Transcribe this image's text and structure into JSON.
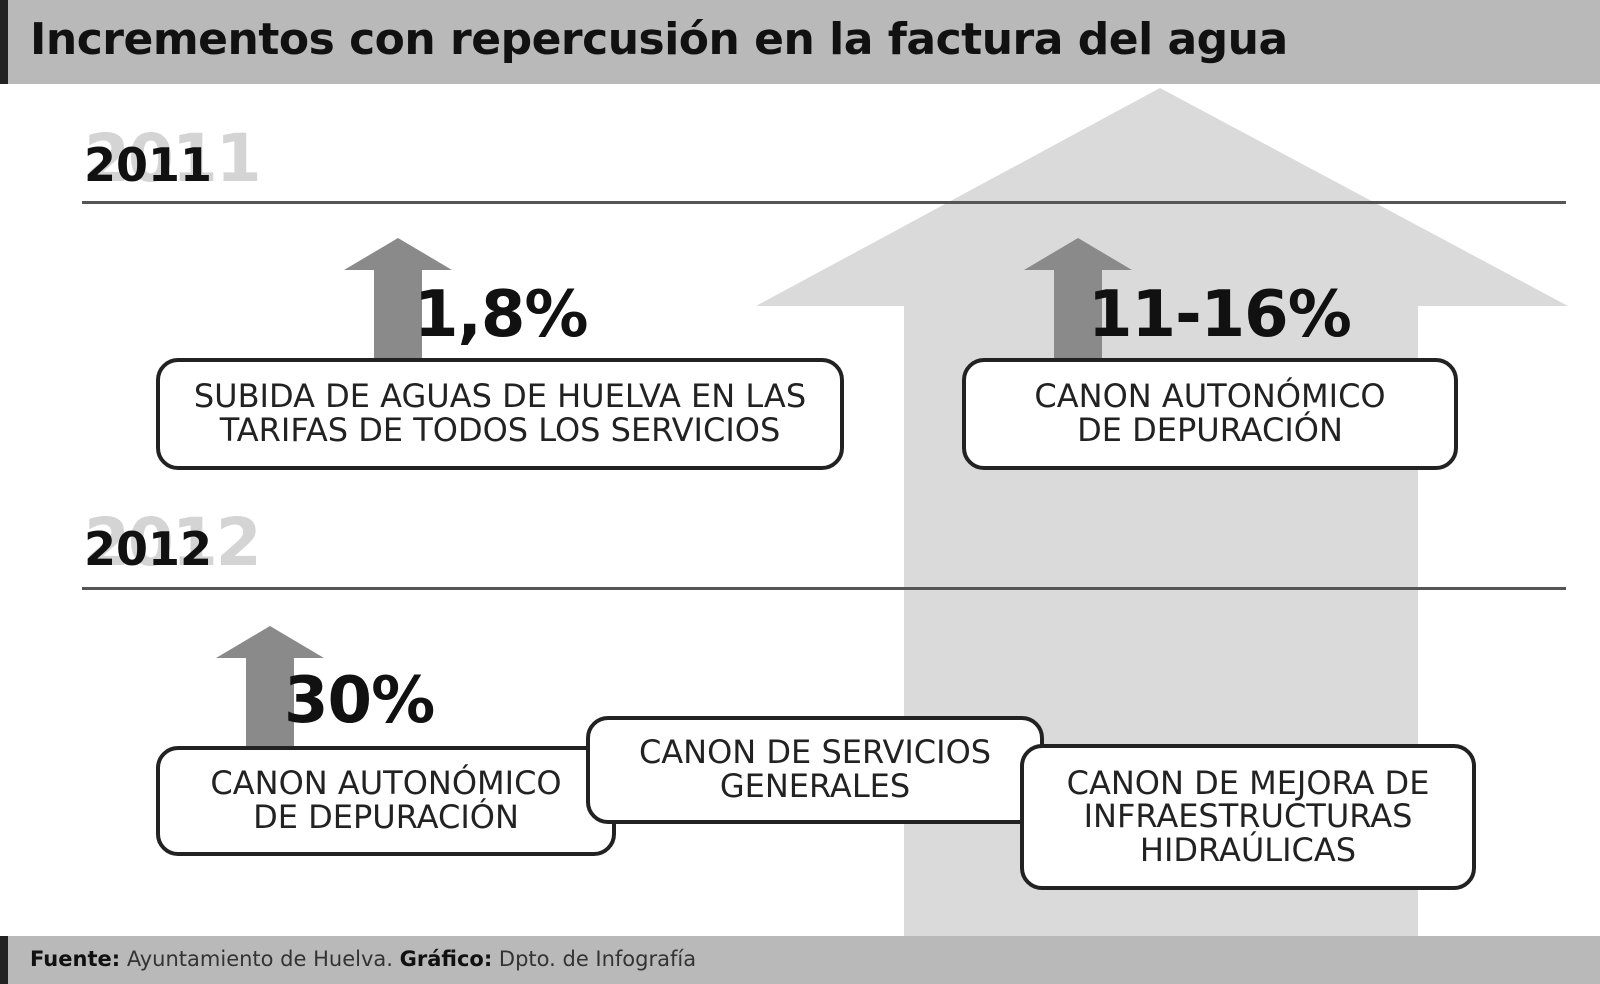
{
  "title": "Incrementos con repercusión en la factura del agua",
  "years": [
    {
      "year": "2011",
      "items": [
        {
          "percent": "1,8%",
          "label": "SUBIDA DE AGUAS DE HUELVA EN LAS\nTARIFAS DE TODOS LOS SERVICIOS"
        },
        {
          "percent": "11-16%",
          "label": "CANON AUTONÓMICO\nDE DEPURACIÓN"
        }
      ]
    },
    {
      "year": "2012",
      "items": [
        {
          "percent": "30%",
          "label": "CANON AUTONÓMICO\nDE DEPURACIÓN"
        },
        {
          "percent": "",
          "label": "CANON DE SERVICIOS\nGENERALES"
        },
        {
          "percent": "",
          "label": "CANON DE MEJORA DE\nINFRAESTRUCTURAS\nHIDRAÚLICAS"
        }
      ]
    }
  ],
  "footer": {
    "source_label": "Fuente:",
    "source_value": "Ayuntamiento de Huelva.",
    "graphic_label": "Gráfico:",
    "graphic_value": "Dpto. de Infografía"
  },
  "colors": {
    "header_bg": "#b9b9b9",
    "big_arrow": "#dadada",
    "small_arrow": "#8a8a8a",
    "text": "#111111"
  }
}
